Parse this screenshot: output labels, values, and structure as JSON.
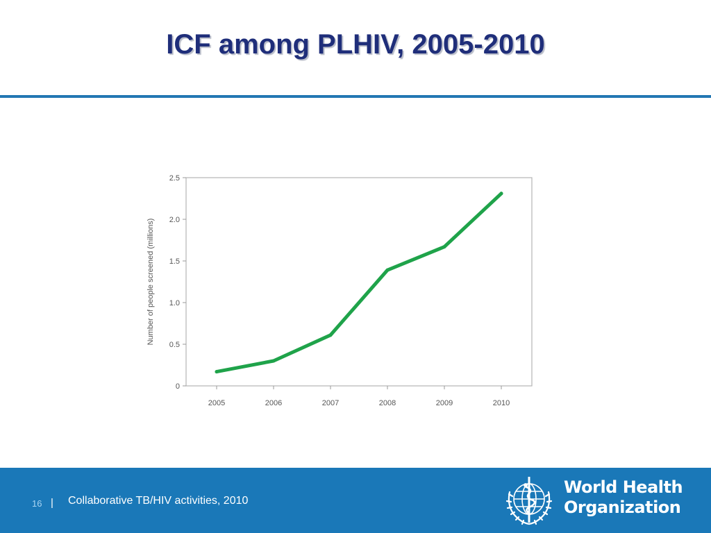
{
  "slide": {
    "title": "ICF among PLHIV, 2005-2010"
  },
  "chart_data": {
    "type": "line",
    "categories": [
      "2005",
      "2006",
      "2007",
      "2008",
      "2009",
      "2010"
    ],
    "series": [
      {
        "values": [
          0.17,
          0.3,
          0.61,
          1.39,
          1.67,
          2.31
        ],
        "color": "#1fa34a"
      }
    ],
    "ylabel": "Number of people screened (millions)",
    "xlabel": "",
    "ylim": [
      0,
      2.5
    ],
    "yticks": [
      0,
      0.5,
      1.0,
      1.5,
      2.0,
      2.5
    ],
    "ytick_labels": [
      "0",
      "0.5",
      "1.0",
      "1.5",
      "2.0",
      "2.5"
    ],
    "grid": false,
    "legend": "none"
  },
  "footer": {
    "page_number": "16",
    "separator": "|",
    "text": "Collaborative TB/HIV activities, 2010",
    "org_line1": "World Health",
    "org_line2": "Organization",
    "logo_icon": "who-emblem-icon",
    "background_color": "#1a78b8"
  }
}
